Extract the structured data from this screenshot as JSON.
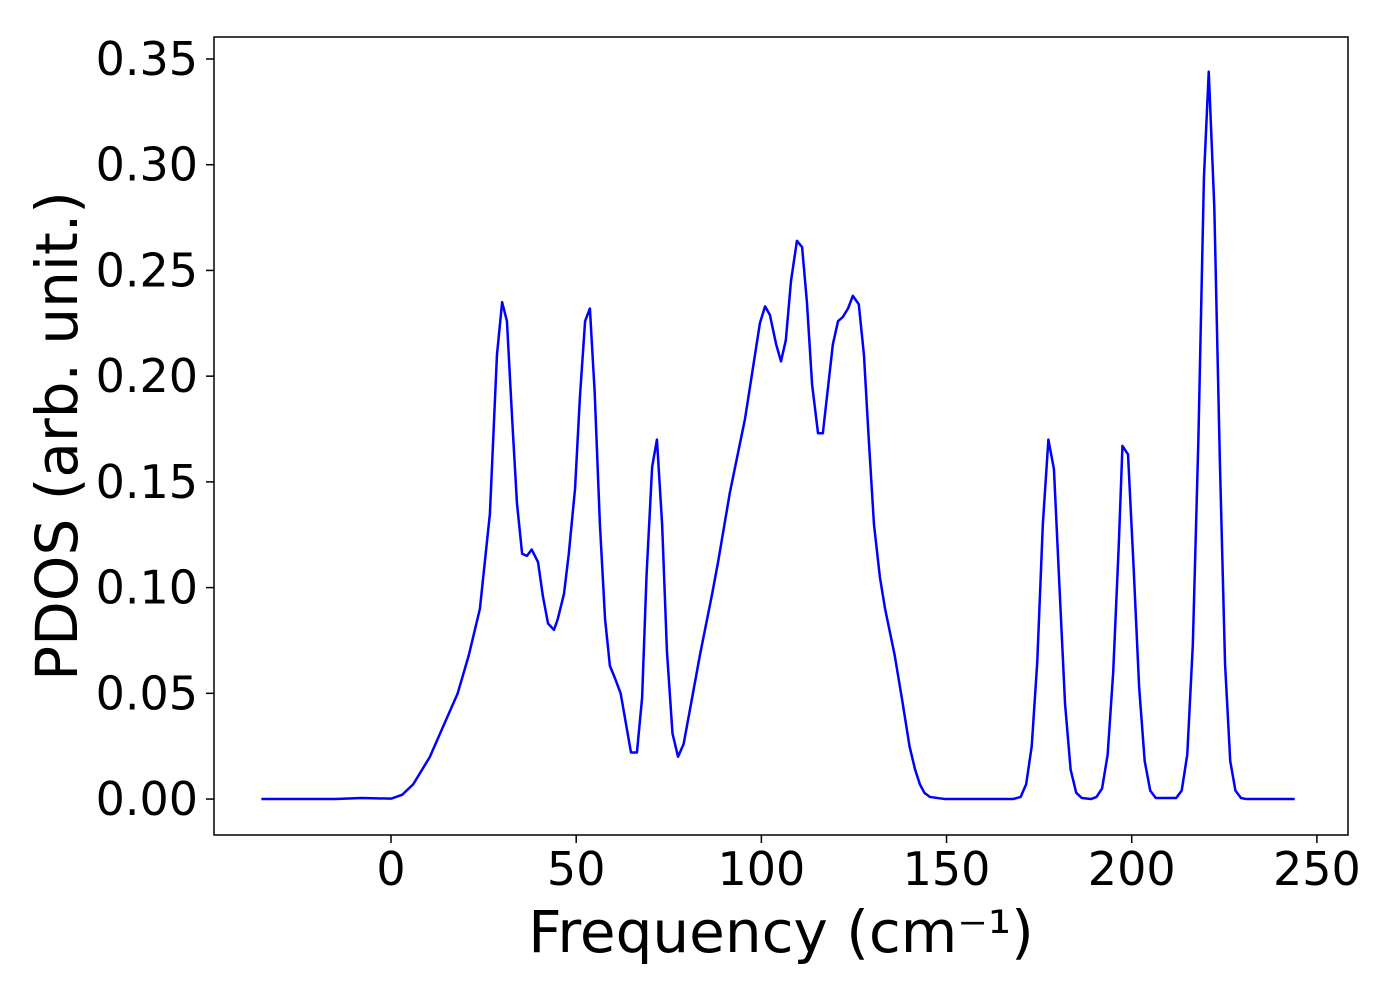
{
  "chart_data": {
    "type": "line",
    "xlabel": "Frequency (cm⁻¹)",
    "ylabel": "PDOS (arb. unit.)",
    "xlim": [
      -47.8,
      258.4
    ],
    "ylim": [
      -0.017,
      0.3604
    ],
    "xticks": [
      0,
      50,
      100,
      150,
      200,
      250
    ],
    "yticks": [
      {
        "value": 0,
        "label": "0.00"
      },
      {
        "value": 0.05,
        "label": "0.05"
      },
      {
        "value": 0.1,
        "label": "0.10"
      },
      {
        "value": 0.15,
        "label": "0.15"
      },
      {
        "value": 0.2,
        "label": "0.20"
      },
      {
        "value": 0.25,
        "label": "0.25"
      },
      {
        "value": 0.3,
        "label": "0.30"
      },
      {
        "value": 0.35,
        "label": "0.35"
      }
    ],
    "grid": false,
    "series": [
      {
        "color": "#0000ff",
        "x": [
          -35,
          -15,
          -8,
          0,
          3,
          6,
          10.5,
          14,
          18,
          21,
          24,
          26.7,
          28.6,
          30,
          31.3,
          32.7,
          34,
          35.4,
          36.7,
          38,
          39.7,
          41,
          42.4,
          44,
          45,
          46.7,
          48,
          49.7,
          51,
          52.4,
          53.7,
          55,
          56.4,
          57.8,
          59.1,
          60.5,
          62,
          64.8,
          66.4,
          67.8,
          69,
          70.5,
          71.8,
          73.2,
          74.5,
          76,
          77.5,
          79,
          81,
          83.4,
          86.7,
          88.3,
          91.5,
          95.6,
          99.6,
          101,
          102.3,
          104,
          105.3,
          106.6,
          108,
          109.6,
          111,
          112.3,
          113.7,
          115.3,
          116.6,
          119.3,
          120.7,
          122,
          123.4,
          124.7,
          126.3,
          127.7,
          129,
          130.4,
          132,
          133.4,
          136,
          138,
          140,
          141.5,
          142.8,
          144,
          145.5,
          149.6,
          168,
          170,
          171.5,
          173,
          174.5,
          176,
          177.5,
          179,
          180.5,
          182,
          183.5,
          185,
          186.5,
          189,
          190.5,
          192,
          193.5,
          195,
          196.5,
          197.5,
          199,
          200.5,
          202,
          203.5,
          205,
          206.5,
          212,
          213.5,
          215,
          216.5,
          218,
          219.5,
          220.8,
          222.3,
          223.8,
          225.2,
          226.6,
          228,
          229.5,
          231,
          244
        ],
        "values": [
          0,
          0,
          0.0005,
          0.0002,
          0.002,
          0.007,
          0.02,
          0.034,
          0.05,
          0.068,
          0.09,
          0.135,
          0.21,
          0.235,
          0.226,
          0.18,
          0.14,
          0.116,
          0.115,
          0.118,
          0.112,
          0.096,
          0.083,
          0.08,
          0.085,
          0.097,
          0.116,
          0.147,
          0.19,
          0.226,
          0.232,
          0.192,
          0.13,
          0.085,
          0.063,
          0.057,
          0.05,
          0.022,
          0.022,
          0.048,
          0.106,
          0.157,
          0.17,
          0.13,
          0.07,
          0.031,
          0.02,
          0.026,
          0.045,
          0.068,
          0.097,
          0.112,
          0.145,
          0.18,
          0.225,
          0.233,
          0.229,
          0.215,
          0.207,
          0.217,
          0.245,
          0.264,
          0.261,
          0.235,
          0.196,
          0.173,
          0.173,
          0.215,
          0.226,
          0.228,
          0.232,
          0.238,
          0.234,
          0.21,
          0.17,
          0.13,
          0.105,
          0.09,
          0.068,
          0.047,
          0.025,
          0.014,
          0.007,
          0.003,
          0.001,
          0,
          0,
          0.001,
          0.007,
          0.025,
          0.065,
          0.13,
          0.17,
          0.156,
          0.1,
          0.045,
          0.014,
          0.003,
          0.0005,
          0,
          0.001,
          0.005,
          0.021,
          0.06,
          0.12,
          0.167,
          0.163,
          0.11,
          0.053,
          0.018,
          0.004,
          0.0005,
          0.0005,
          0.004,
          0.021,
          0.073,
          0.17,
          0.294,
          0.344,
          0.28,
          0.16,
          0.064,
          0.018,
          0.004,
          0.0005,
          0,
          0
        ]
      }
    ]
  }
}
